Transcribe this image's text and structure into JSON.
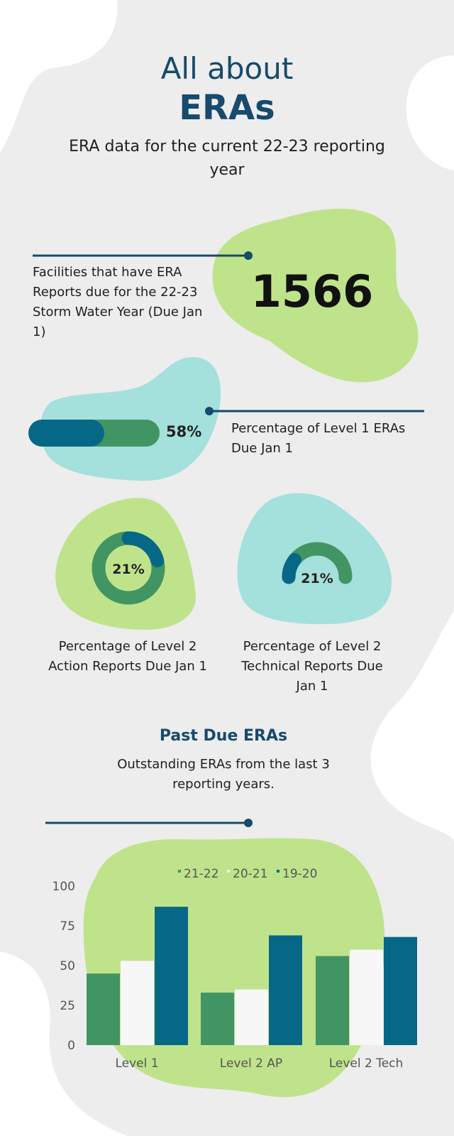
{
  "header": {
    "title_line1": "All about",
    "title_line2": "ERAs",
    "subtitle": "ERA data for the current 22-23 reporting year"
  },
  "stat_facilities": {
    "label": "Facilities that have ERA Reports due for the 22-23 Storm Water Year (Due Jan 1)",
    "value": "1566"
  },
  "stat_level1": {
    "value_text": "58%",
    "fraction": 0.58,
    "label": "Percentage of Level 1 ERAs Due Jan 1"
  },
  "stat_level2_action": {
    "value_text": "21%",
    "fraction": 0.21,
    "label": "Percentage of Level 2 Action Reports Due Jan 1"
  },
  "stat_level2_technical": {
    "value_text": "21%",
    "fraction": 0.21,
    "label": "Percentage of Level 2 Technical Reports Due Jan 1"
  },
  "past_due": {
    "title": "Past Due ERAs",
    "subtitle": "Outstanding ERAs from the last 3 reporting years."
  },
  "colors": {
    "navy": "#174a6c",
    "teal": "#066886",
    "green": "#419562",
    "light_green_blob": "#bfe38b",
    "light_teal_blob": "#a4e0dc",
    "off_white_bar": "#f7f7f7"
  },
  "chart_data": {
    "type": "bar",
    "categories": [
      "Level 1",
      "Level 2 AP",
      "Level 2 Tech"
    ],
    "series": [
      {
        "name": "21-22",
        "values": [
          45,
          33,
          56
        ],
        "color": "#419562"
      },
      {
        "name": "20-21",
        "values": [
          53,
          35,
          60
        ],
        "color": "#f7f7f7"
      },
      {
        "name": "19-20",
        "values": [
          87,
          69,
          68
        ],
        "color": "#066886"
      }
    ],
    "y_ticks": [
      0,
      25,
      50,
      75,
      100
    ],
    "ylim": [
      0,
      100
    ],
    "legend_position": "top-center",
    "grid": false
  }
}
